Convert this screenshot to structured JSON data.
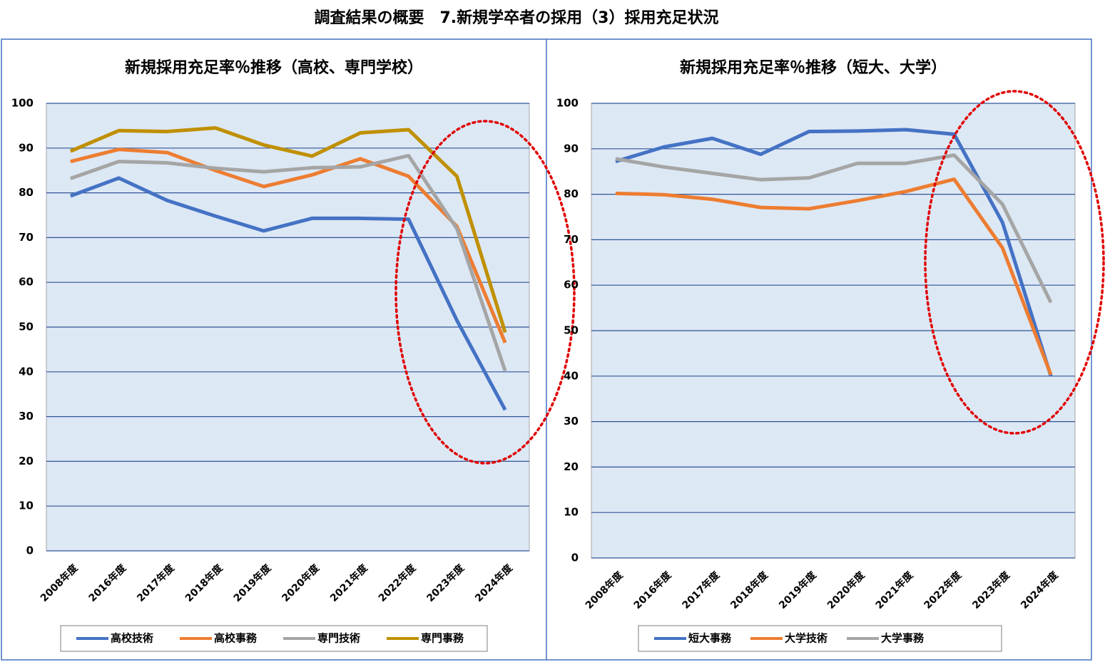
{
  "title": "調査結果の概要　7.新規学卒者の採用（3）採用充足状況",
  "chart_data": [
    {
      "type": "line",
      "title": "新規採用充足率％推移（高校、専門学校）",
      "categories": [
        "2008年度",
        "2016年度",
        "2017年度",
        "2018年度",
        "2019年度",
        "2020年度",
        "2021年度",
        "2022年度",
        "2023年度",
        "2024年度"
      ],
      "series": [
        {
          "name": "高校技術",
          "color": "#4472c4",
          "values": [
            79.3,
            83.3,
            78.3,
            74.8,
            71.5,
            74.3,
            74.3,
            74.1,
            51.5,
            31.5
          ]
        },
        {
          "name": "高校事務",
          "color": "#ed7d31",
          "values": [
            87,
            89.7,
            89,
            85,
            81.4,
            84,
            87.6,
            83.7,
            72.5,
            46.5
          ]
        },
        {
          "name": "専門技術",
          "color": "#a5a5a5",
          "values": [
            83.2,
            87,
            86.7,
            85.5,
            84.7,
            85.6,
            85.8,
            88.3,
            72,
            40.2
          ]
        },
        {
          "name": "専門事務",
          "color": "#bf9000",
          "values": [
            89.3,
            93.9,
            93.7,
            94.5,
            90.7,
            88.2,
            93.4,
            94.1,
            83.7,
            48.8
          ]
        }
      ],
      "ylim": [
        0,
        100
      ],
      "yticks": [
        0,
        10,
        20,
        30,
        40,
        50,
        60,
        70,
        80,
        90,
        100
      ],
      "grid": true,
      "legend": "bottom"
    },
    {
      "type": "line",
      "title": "新規採用充足率％推移（短大、大学）",
      "categories": [
        "2008年度",
        "2016年度",
        "2017年度",
        "2018年度",
        "2019年度",
        "2020年度",
        "2021年度",
        "2022年度",
        "2023年度",
        "2024年度"
      ],
      "series": [
        {
          "name": "短大事務",
          "color": "#4472c4",
          "values": [
            87.2,
            90.4,
            92.3,
            88.8,
            93.8,
            93.9,
            94.2,
            93.2,
            73.8,
            40
          ]
        },
        {
          "name": "大学技術",
          "color": "#ed7d31",
          "values": [
            80.2,
            79.9,
            78.9,
            77.1,
            76.8,
            78.6,
            80.6,
            83.3,
            68.2,
            40.3
          ]
        },
        {
          "name": "大学事務",
          "color": "#a5a5a5",
          "values": [
            87.8,
            86,
            84.6,
            83.2,
            83.6,
            86.8,
            86.8,
            88.6,
            77.8,
            56.2
          ]
        }
      ],
      "ylim": [
        0,
        100
      ],
      "yticks": [
        0,
        10,
        20,
        30,
        40,
        50,
        60,
        70,
        80,
        90,
        100
      ],
      "grid": true,
      "legend": "bottom"
    }
  ]
}
